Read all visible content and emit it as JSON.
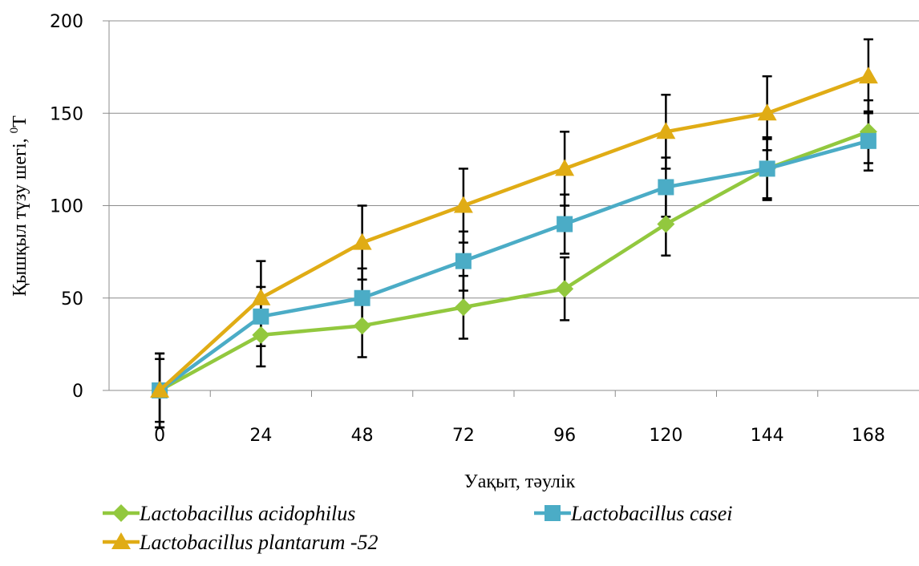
{
  "chart_data": {
    "type": "line",
    "categories": [
      "0",
      "24",
      "48",
      "72",
      "96",
      "120",
      "144",
      "168"
    ],
    "xlabel": "Уақыт, тәулік",
    "ylabel": "Қышқыл түзу шегі, ",
    "ylabel_sup": "0",
    "ylabel_unit": "Т",
    "ylim": [
      0,
      200
    ],
    "yticks": [
      "0",
      "50",
      "100",
      "150",
      "200"
    ],
    "grid": true,
    "legend_position": "bottom",
    "series": [
      {
        "name": "Lactobacillus acidophilus",
        "color": "#92c83e",
        "marker": "diamond",
        "values": [
          0,
          30,
          35,
          45,
          55,
          90,
          120,
          140
        ],
        "error": [
          20,
          17,
          17,
          17,
          17,
          17,
          17,
          17
        ]
      },
      {
        "name": "Lactobacillus casei",
        "color": "#4bacc6",
        "marker": "square",
        "values": [
          0,
          40,
          50,
          70,
          90,
          110,
          120,
          135
        ],
        "error": [
          17,
          16,
          16,
          16,
          16,
          16,
          16,
          16
        ]
      },
      {
        "name": "Lactobacillus plantarum -52",
        "color": "#e0ac15",
        "marker": "triangle",
        "values": [
          0,
          50,
          80,
          100,
          120,
          140,
          150,
          170
        ],
        "error": [
          20,
          20,
          20,
          20,
          20,
          20,
          20,
          20
        ]
      }
    ]
  }
}
